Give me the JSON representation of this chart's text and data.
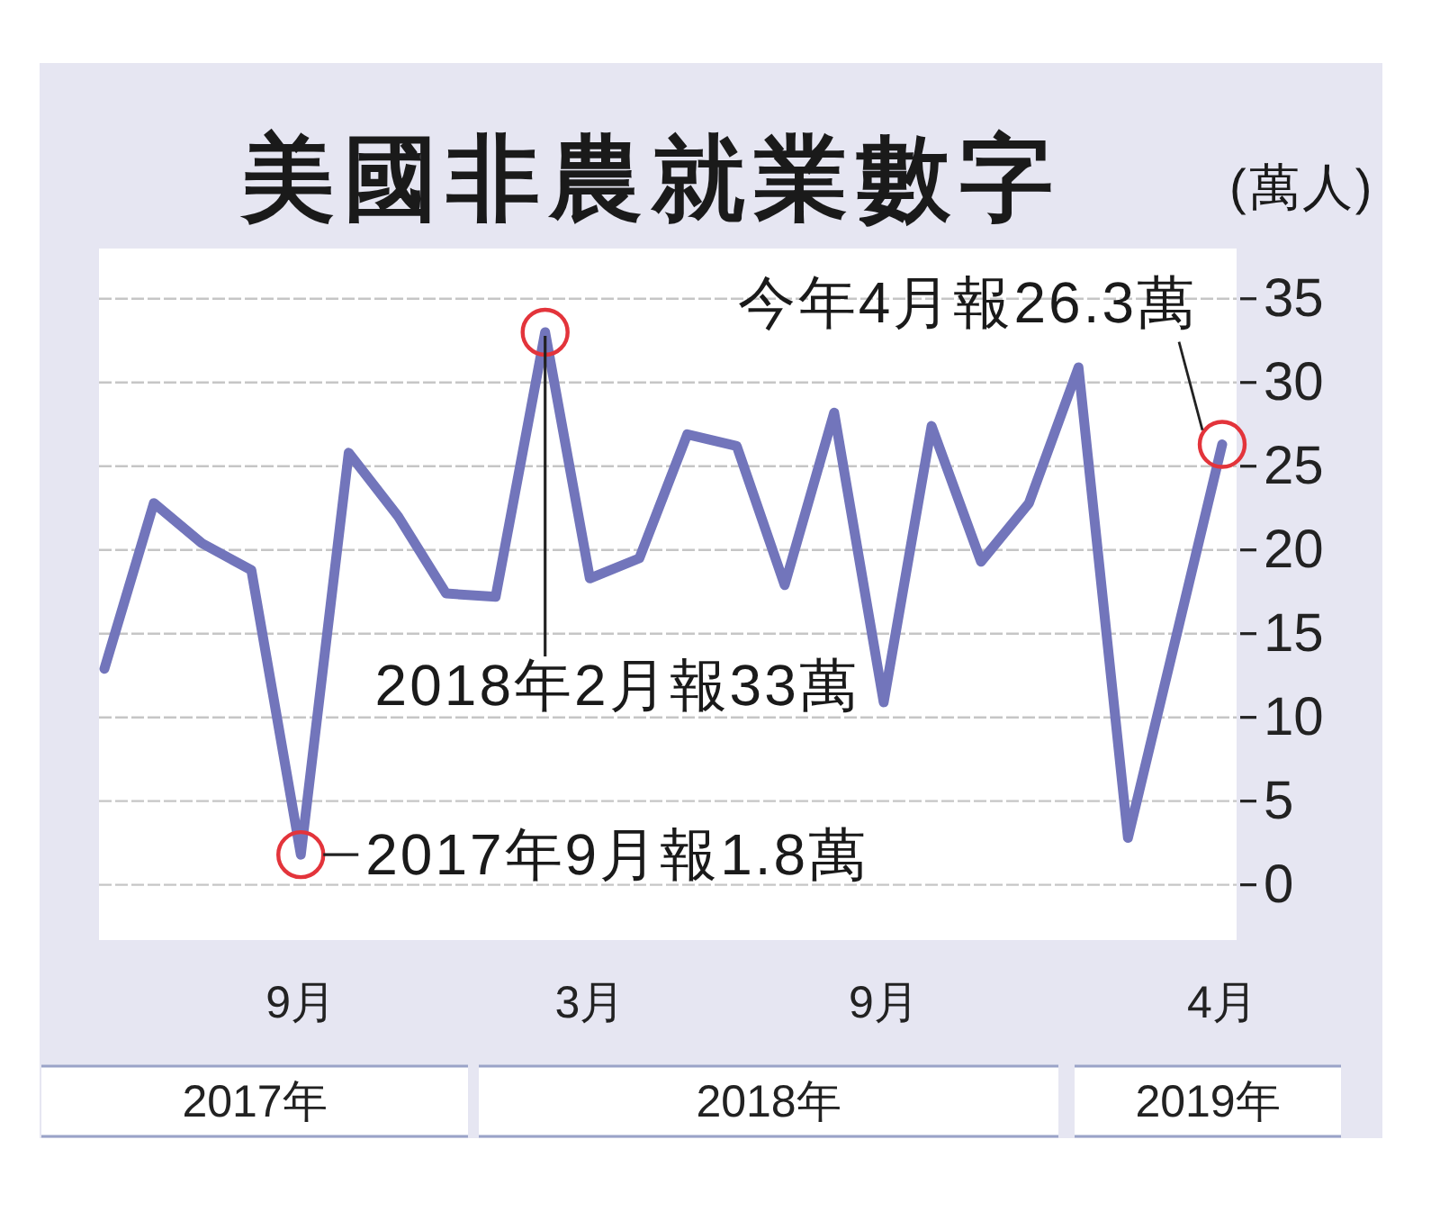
{
  "chart_data": {
    "type": "line",
    "title": "美國非農就業數字",
    "ylabel": "(萬人)",
    "x": [
      "2017-05",
      "2017-06",
      "2017-07",
      "2017-08",
      "2017-09",
      "2017-10",
      "2017-11",
      "2017-12",
      "2018-01",
      "2018-02",
      "2018-03",
      "2018-04",
      "2018-05",
      "2018-06",
      "2018-07",
      "2018-08",
      "2018-09",
      "2018-10",
      "2018-11",
      "2018-12",
      "2019-01",
      "2019-02",
      "2019-04"
    ],
    "series": [
      {
        "color": "#7275bb",
        "values": [
          12.9,
          22.8,
          20.4,
          18.8,
          1.8,
          25.8,
          22.0,
          17.4,
          17.2,
          33,
          18.3,
          19.5,
          26.9,
          26.2,
          17.9,
          28.2,
          10.9,
          27.4,
          19.3,
          22.8,
          30.9,
          2.8,
          26.3
        ]
      },
      {
        "type": "scatter",
        "color": "#e3343b",
        "marker": "circle",
        "x": [
          "2017-09",
          "2018-02",
          "2019-04"
        ],
        "values": [
          1.8,
          33,
          26.3
        ]
      }
    ],
    "xlim": [
      "2017-05",
      "2019-04"
    ],
    "xticks": [
      {
        "value": "2017-09",
        "label": "9月"
      },
      {
        "value": "2018-03",
        "label": "3月"
      },
      {
        "value": "2018-09",
        "label": "9月"
      },
      {
        "value": "2019-04",
        "label": "4月"
      }
    ],
    "ylim": [
      -3.3,
      38
    ],
    "yticks": [
      0,
      5,
      10,
      15,
      20,
      25,
      30,
      35
    ],
    "grid": "y",
    "annotations": [
      {
        "text": "2017年9月報1.8萬",
        "x": "2017-09",
        "y": 1.8
      },
      {
        "text": "2018年2月報33萬",
        "x": "2018-02",
        "y": 33
      },
      {
        "text": "今年4月報26.3萬",
        "x": "2019-04",
        "y": 26.3
      },
      "2017年",
      "2018年",
      "2019年"
    ]
  }
}
